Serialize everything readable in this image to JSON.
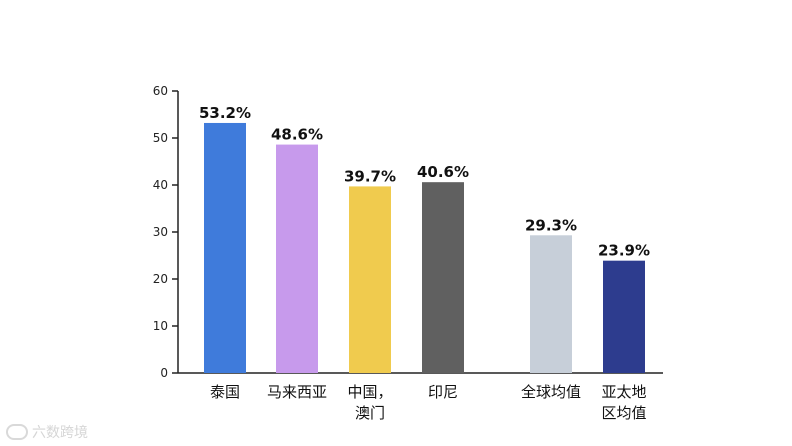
{
  "chart_data": {
    "type": "bar",
    "title": "",
    "xlabel": "",
    "ylabel": "",
    "ylim": [
      0,
      60
    ],
    "yticks": [
      0,
      10,
      20,
      30,
      40,
      50,
      60
    ],
    "grid": false,
    "legend": "none",
    "categories": [
      [
        "泰国"
      ],
      [
        "马来西亚"
      ],
      [
        "中国，",
        "澳门"
      ],
      [
        "印尼"
      ],
      [
        "全球均值"
      ],
      [
        "亚太地",
        "区均值"
      ]
    ],
    "values": [
      53.2,
      48.6,
      39.7,
      40.6,
      29.3,
      23.9
    ],
    "value_labels": [
      "53.2%",
      "48.6%",
      "39.7%",
      "40.6%",
      "29.3%",
      "23.9%"
    ],
    "colors": [
      "#3F7BDB",
      "#C79AEC",
      "#F0CB4E",
      "#606060",
      "#C7CFD9",
      "#2D3C8E"
    ]
  },
  "watermark": {
    "text": "六数跨境"
  }
}
